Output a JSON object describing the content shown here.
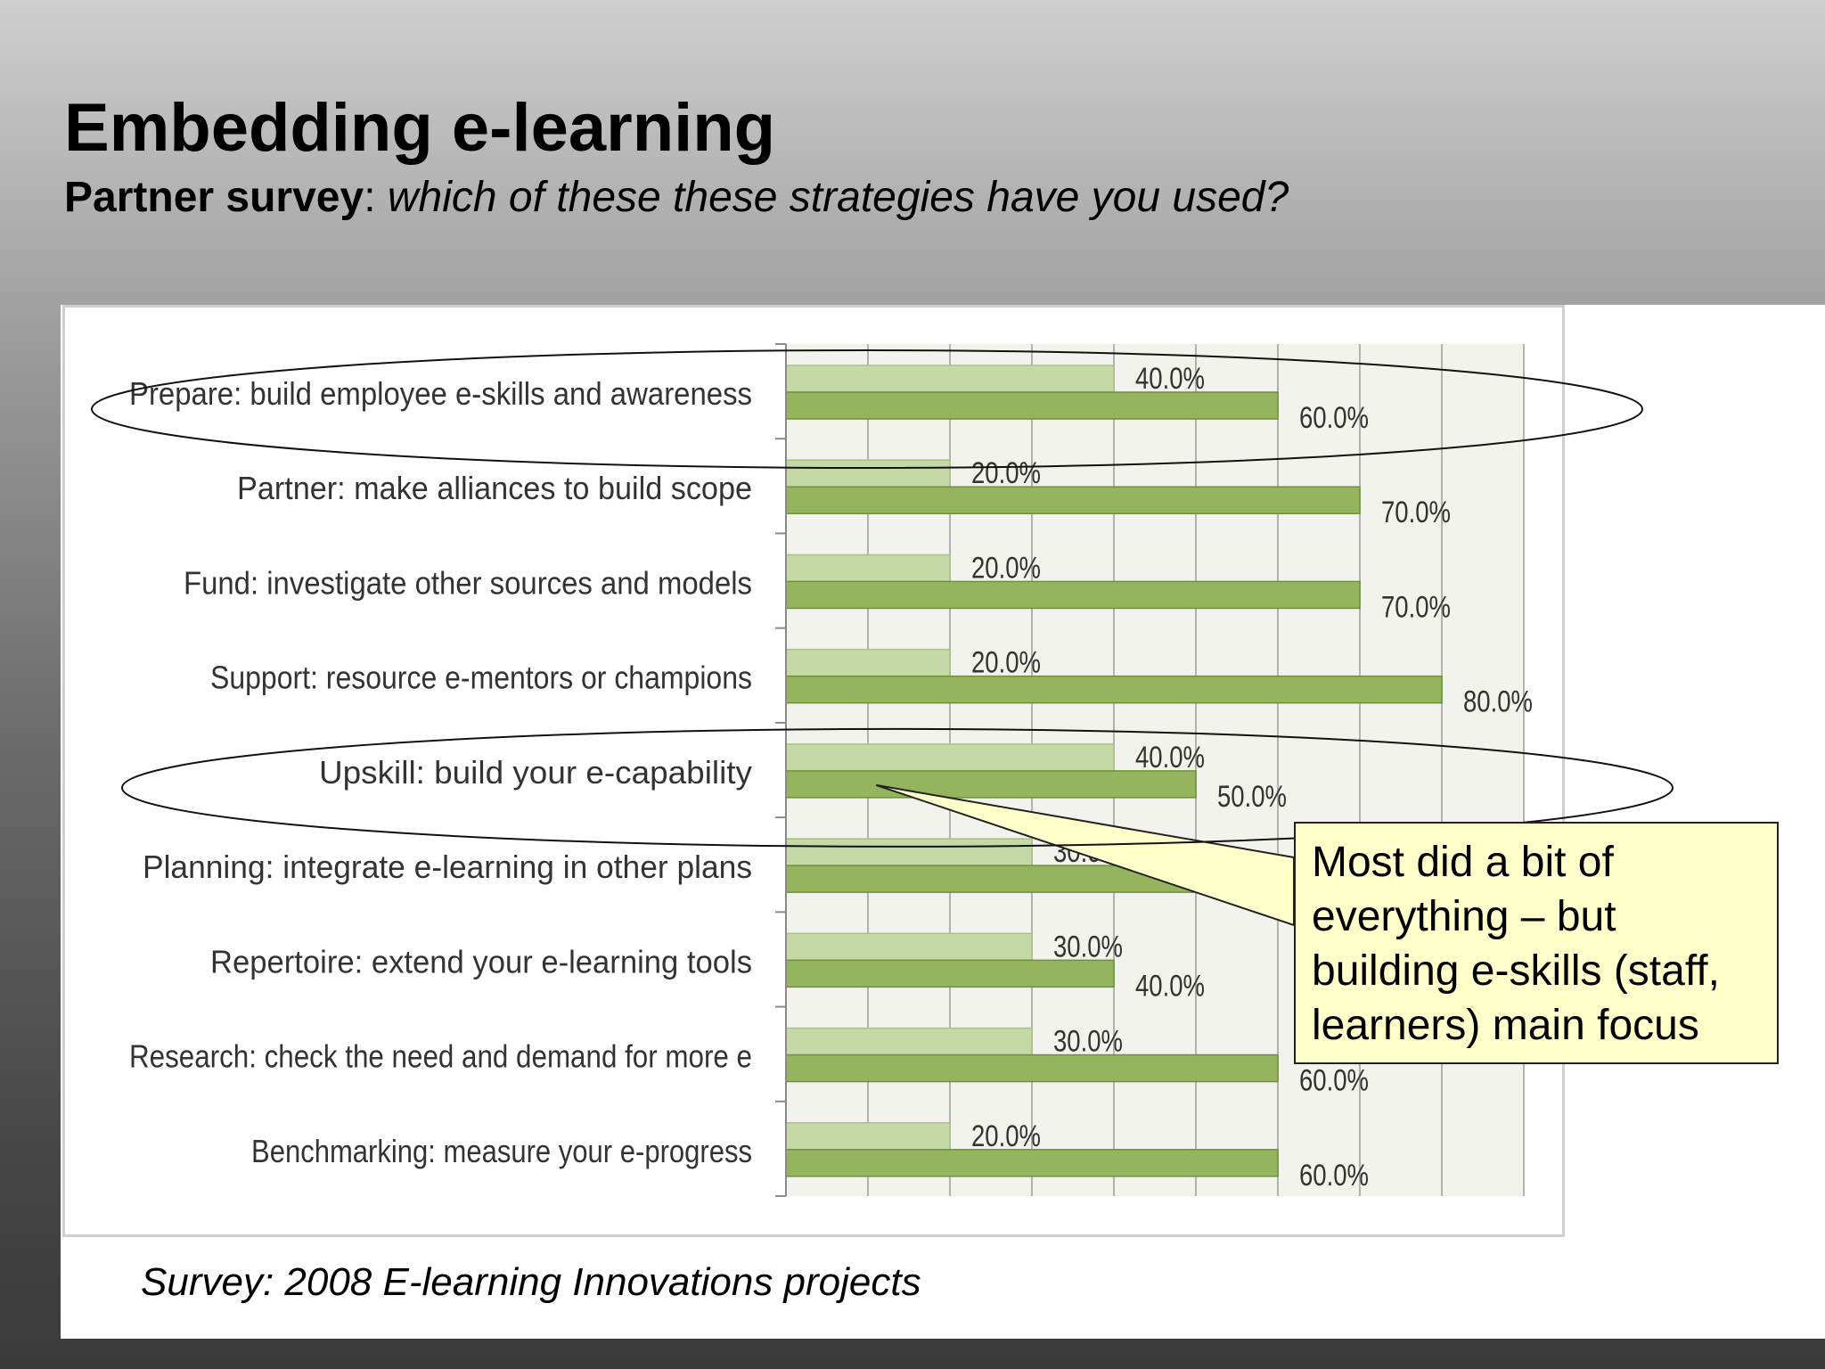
{
  "slide": {
    "title": "Embedding e-learning",
    "subtitle_bold": "Partner survey",
    "subtitle_colon": ":",
    "subtitle_italic": " which of these these strategies have you used?",
    "source_note": "Survey: 2008 E-learning Innovations projects",
    "callout": "Most did a bit of everything – but building e-skills (staff, learners) main focus"
  },
  "colors": {
    "bar_light": "#c5d9a7",
    "bar_light_border": "#a9c186",
    "bar_dark": "#94b55e",
    "bar_dark_border": "#6f913b",
    "plot_bg": "#f1f3ec",
    "grid": "#b2b2b2",
    "label_text": "#333333",
    "callout_fill": "#ffffcc"
  },
  "chart_data": {
    "type": "bar",
    "orientation": "horizontal",
    "categories": [
      "Prepare: build employee e-skills and awareness",
      "Partner: make alliances to build scope",
      "Fund: investigate other sources and models",
      "Support: resource e-mentors or champions",
      "Upskill: build your e-capability",
      "Planning: integrate e-learning in other plans",
      "Repertoire: extend your e-learning tools",
      "Research: check the need and demand for more e",
      "Benchmarking: measure your e-progress"
    ],
    "series": [
      {
        "values": [
          40,
          20,
          20,
          20,
          40,
          30,
          30,
          30,
          20
        ],
        "value_labels": [
          "40.0%",
          "20.0%",
          "20.0%",
          "20.0%",
          "40.0%",
          "30.0%",
          "30.0%",
          "30.0%",
          "20.0%"
        ],
        "color": "#c5d9a7"
      },
      {
        "values": [
          60,
          70,
          70,
          80,
          50,
          50,
          40,
          60,
          60
        ],
        "value_labels": [
          "60.0%",
          "70.0%",
          "70.0%",
          "80.0%",
          "50.0%",
          "",
          "40.0%",
          "60.0%",
          "60.0%"
        ],
        "color": "#94b55e"
      }
    ],
    "xlim": [
      0,
      90
    ],
    "grid": true,
    "legend": "none",
    "highlighted_categories": [
      0,
      4
    ]
  }
}
